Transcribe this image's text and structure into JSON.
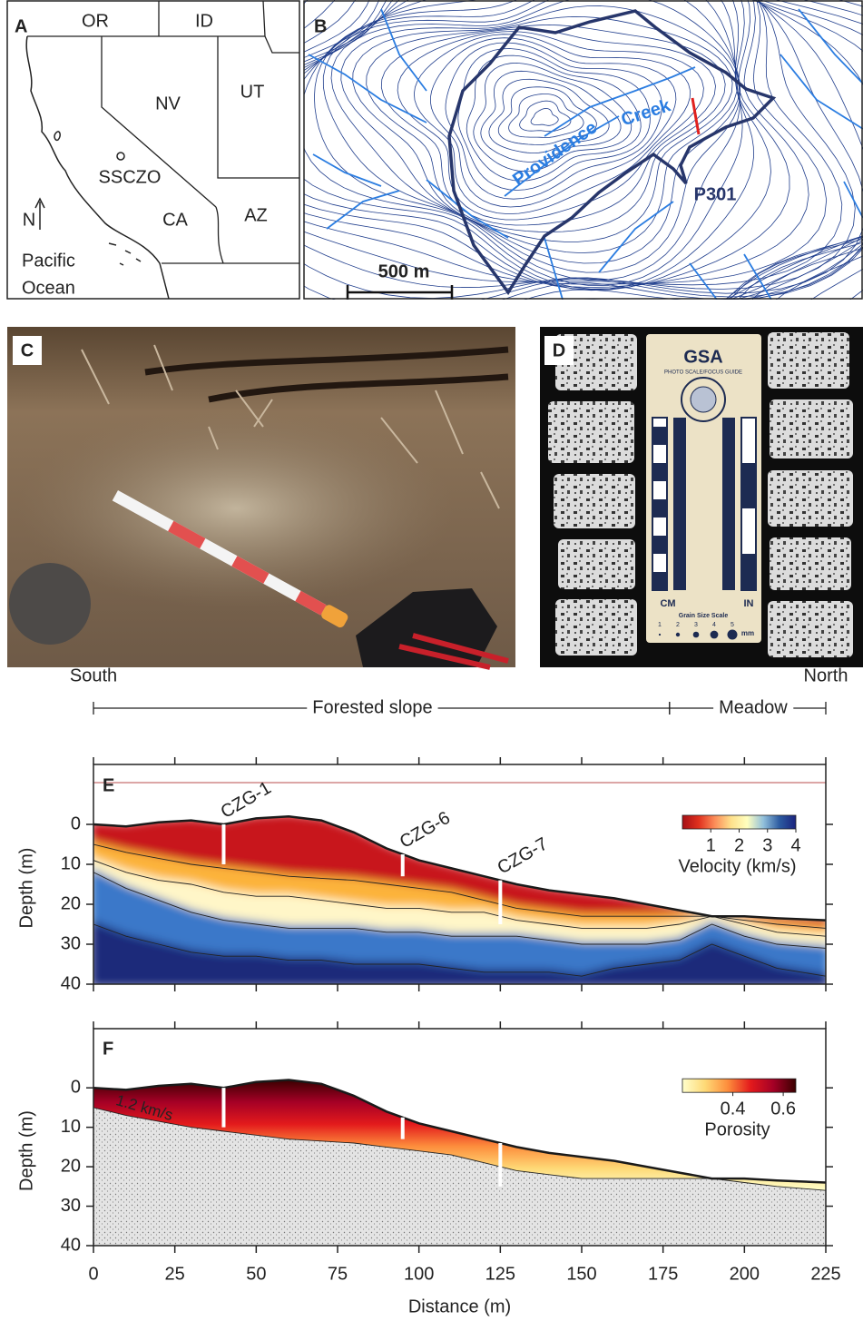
{
  "panels": {
    "a": {
      "label": "A",
      "states": [
        "OR",
        "ID",
        "NV",
        "UT",
        "CA",
        "AZ"
      ],
      "site": "SSCZO",
      "north": "N",
      "ocean": [
        "Pacific",
        "Ocean"
      ]
    },
    "b": {
      "label": "B",
      "creek": [
        "Providence",
        "Creek"
      ],
      "site": "P301",
      "scale_bar": "500 m"
    },
    "c": {
      "label": "C"
    },
    "d": {
      "label": "D",
      "card_title": "GSA",
      "card_subtitle": "PHOTO SCALE/FOCUS GUIDE",
      "left_unit": "CM",
      "right_unit": "IN",
      "grain_title": "Grain Size Scale",
      "grain_sizes": [
        1,
        2,
        3,
        4,
        5
      ],
      "grain_unit": "mm"
    }
  },
  "chart_data": [
    {
      "type": "contour",
      "label": "E",
      "ends": [
        "South",
        "North"
      ],
      "zones": [
        {
          "label": "Forested slope",
          "range": [
            0,
            177
          ]
        },
        {
          "label": "Meadow",
          "range": [
            177,
            225
          ]
        }
      ],
      "ylabel": "Depth (m)",
      "xlim": [
        0,
        225
      ],
      "xticks": [
        0,
        25,
        50,
        75,
        100,
        125,
        150,
        175,
        200,
        225
      ],
      "show_xtick_labels": false,
      "ylim": [
        -15,
        40
      ],
      "yticks": [
        0,
        10,
        20,
        30,
        40
      ],
      "y_inverted": true,
      "x": [
        0,
        10,
        20,
        30,
        40,
        50,
        60,
        70,
        80,
        90,
        100,
        110,
        120,
        130,
        140,
        150,
        160,
        170,
        180,
        190,
        200,
        210,
        225
      ],
      "series": [
        {
          "color": "#c8141e",
          "values": [
            0,
            0.5,
            -0.5,
            -1,
            0,
            -1.5,
            -2,
            -1,
            2,
            6,
            9,
            11,
            13,
            15,
            16.5,
            17.5,
            18.5,
            20,
            21.5,
            23,
            23,
            23.5,
            24
          ]
        },
        {
          "color": "#fcb33a",
          "values": [
            5,
            7,
            8.5,
            10,
            11,
            12,
            13,
            13.5,
            14,
            15,
            16,
            17,
            19,
            21,
            22,
            23,
            23,
            23,
            23,
            23,
            24,
            25,
            26
          ]
        },
        {
          "color": "#fff6c8",
          "values": [
            9,
            12,
            14,
            15,
            17,
            18,
            18,
            19,
            20,
            21,
            21,
            22,
            22,
            24,
            25,
            26,
            26,
            26,
            25,
            23,
            25,
            27,
            28
          ]
        },
        {
          "color": "#3a78c9",
          "values": [
            12,
            16,
            19,
            22,
            24,
            25,
            26,
            26,
            26,
            27,
            27,
            28,
            28,
            28,
            29,
            30,
            30,
            30,
            29,
            25,
            28,
            30,
            31
          ]
        },
        {
          "color": "#1b2a7a",
          "values": [
            25,
            28,
            30,
            32,
            33,
            33,
            34,
            34,
            35,
            35,
            35,
            36,
            37,
            37,
            37,
            38,
            36,
            35,
            34,
            30,
            33,
            36,
            38
          ]
        }
      ],
      "boreholes": [
        {
          "name": "CZG-1",
          "x": 40,
          "depth": [
            0,
            10
          ]
        },
        {
          "name": "CZG-6",
          "x": 95,
          "depth": [
            7.5,
            13
          ]
        },
        {
          "name": "CZG-7",
          "x": 125,
          "depth": [
            14,
            25
          ]
        }
      ],
      "colorbar": {
        "label": "Velocity (km/s)",
        "lim": [
          0,
          4
        ],
        "ticks": [
          1,
          2,
          3,
          4
        ],
        "colors": [
          "#a50f15",
          "#e0301e",
          "#fc8d59",
          "#fee08b",
          "#ffffbf",
          "#91bfdb",
          "#2c5aa0",
          "#1a237e"
        ]
      }
    },
    {
      "type": "area",
      "label": "F",
      "ylabel": "Depth (m)",
      "xlabel": "Distance (m)",
      "xlim": [
        0,
        225
      ],
      "xticks": [
        0,
        25,
        50,
        75,
        100,
        125,
        150,
        175,
        200,
        225
      ],
      "show_xtick_labels": true,
      "ylim": [
        -15,
        40
      ],
      "yticks": [
        0,
        10,
        20,
        30,
        40
      ],
      "y_inverted": true,
      "x": [
        0,
        10,
        20,
        30,
        40,
        50,
        60,
        70,
        80,
        90,
        100,
        110,
        120,
        130,
        140,
        150,
        160,
        170,
        180,
        190,
        200,
        210,
        225
      ],
      "series": [
        {
          "values": [
            0,
            0.5,
            -0.5,
            -1,
            0,
            -1.5,
            -2,
            -1,
            2,
            6,
            9,
            11,
            13,
            15,
            16.5,
            17.5,
            18.5,
            20,
            21.5,
            23,
            23,
            23.5,
            24
          ]
        },
        {
          "color": "#e4e4e4",
          "values": [
            5,
            7,
            8.5,
            10,
            11,
            12,
            13,
            13.5,
            14,
            15,
            16,
            17,
            19,
            21,
            22,
            23,
            23,
            23,
            23,
            23,
            24,
            25,
            26
          ]
        }
      ],
      "contour_label": "1.2 km/s",
      "boreholes": [
        {
          "x": 40,
          "depth": [
            0,
            10
          ]
        },
        {
          "x": 95,
          "depth": [
            7.5,
            13
          ]
        },
        {
          "x": 125,
          "depth": [
            14,
            25
          ]
        }
      ],
      "colorbar": {
        "label": "Porosity",
        "lim": [
          0.2,
          0.65
        ],
        "ticks": [
          0.4,
          0.6
        ],
        "colors": [
          "#ffffcc",
          "#fed976",
          "#fd8d3c",
          "#e31a1c",
          "#a50026",
          "#3a0000"
        ]
      }
    }
  ]
}
